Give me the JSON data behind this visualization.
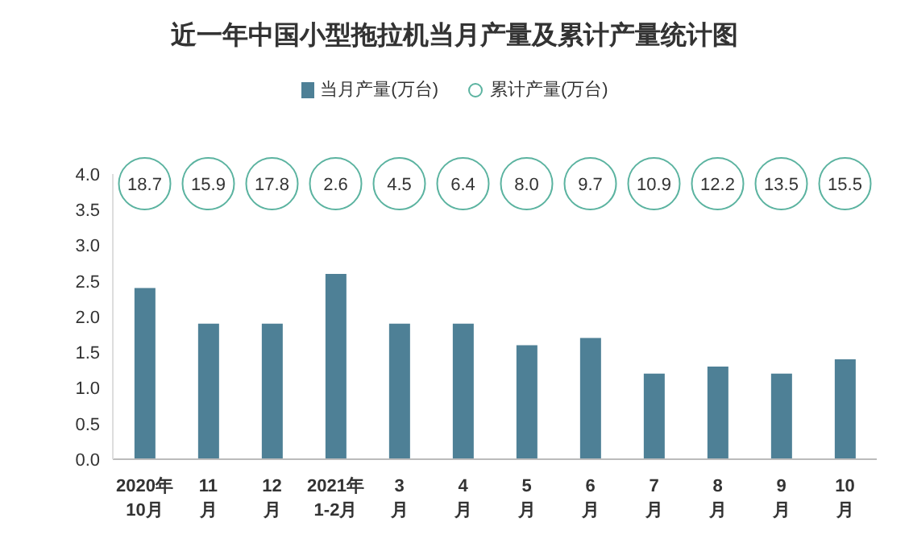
{
  "chart_data": [
    {
      "type": "bar",
      "title": "近一年中国小型拖拉机当月产量及累计产量统计图",
      "categories": [
        "2020年\n10月",
        "11\n月",
        "12\n月",
        "2021年\n1-2月",
        "3\n月",
        "4\n月",
        "5\n月",
        "6\n月",
        "7\n月",
        "8\n月",
        "9\n月",
        "10\n月"
      ],
      "series": [
        {
          "name": "当月产量(万台)",
          "color": "#4e8096",
          "values": [
            2.4,
            1.9,
            1.9,
            2.6,
            1.9,
            1.9,
            1.6,
            1.7,
            1.2,
            1.3,
            1.2,
            1.4
          ]
        }
      ],
      "ylim": [
        0,
        4
      ],
      "yticks": [
        {
          "value": 0,
          "label": "0.0"
        },
        {
          "value": 0.5,
          "label": "0.5"
        },
        {
          "value": 1,
          "label": "1.0"
        },
        {
          "value": 1.5,
          "label": "1.5"
        },
        {
          "value": 2,
          "label": "2.0"
        },
        {
          "value": 2.5,
          "label": "2.5"
        },
        {
          "value": 3,
          "label": "3.0"
        },
        {
          "value": 3.5,
          "label": "3.5"
        },
        {
          "value": 4,
          "label": "4.0"
        }
      ],
      "legend": "top",
      "grid": false
    },
    {
      "type": "other",
      "categories": [
        null,
        null,
        null,
        null,
        null,
        null,
        null,
        null,
        null,
        null,
        null,
        null
      ],
      "series": [
        {
          "name": "累计产量(万台)",
          "color": "#5bb3a0",
          "values": [
            18.7,
            15.9,
            17.8,
            2.6,
            4.5,
            6.4,
            8.0,
            9.7,
            10.9,
            12.2,
            13.5,
            15.5
          ],
          "value_labels": [
            "18.7",
            "15.9",
            "17.8",
            "2.6",
            "4.5",
            "6.4",
            "8.0",
            "9.7",
            "10.9",
            "12.2",
            "13.5",
            "15.5"
          ]
        }
      ],
      "legend": "top"
    }
  ]
}
